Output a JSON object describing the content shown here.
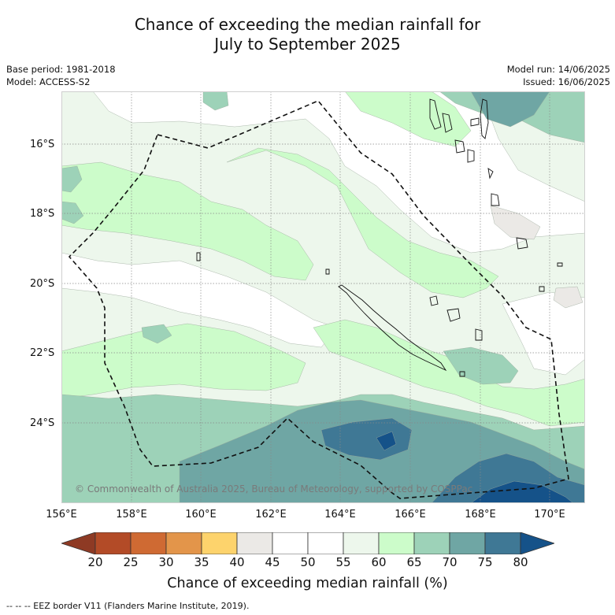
{
  "title": {
    "line1": "Chance of exceeding the median rainfall for",
    "line2": "July to September 2025"
  },
  "meta": {
    "base_period": "Base period: 1981-2018",
    "model": "Model: ACCESS-S2",
    "model_run": "Model run: 14/06/2025",
    "issued": "Issued: 16/06/2025"
  },
  "axes": {
    "lat_labels": [
      "16°S",
      "18°S",
      "20°S",
      "22°S",
      "24°S"
    ],
    "lon_labels": [
      "156°E",
      "158°E",
      "160°E",
      "162°E",
      "164°E",
      "166°E",
      "168°E",
      "170°E"
    ]
  },
  "copyright": "© Commonwealth of Australia 2025, Bureau of Meteorology, supported by COSPPac",
  "colorbar": {
    "labels": [
      "20",
      "25",
      "30",
      "35",
      "40",
      "45",
      "50",
      "55",
      "60",
      "65",
      "70",
      "75",
      "80"
    ],
    "colors": [
      "#8e3a24",
      "#b34b27",
      "#cf6a33",
      "#e3954a",
      "#fdd36c",
      "#ebe9e6",
      "#ffffff",
      "#ffffff",
      "#edf7ec",
      "#ccfcca",
      "#9dd2b8",
      "#6fa6a4",
      "#3f7895",
      "#155289"
    ],
    "title": "Chance of exceeding median rainfall (%)"
  },
  "footnote": "--  --  -- EEZ border V11 (Flanders Marine Institute, 2019).",
  "map_colors": {
    "c55": "#ffffff",
    "c60": "#edf7ec",
    "c65": "#ccfcca",
    "c70": "#9dd2b8",
    "c75": "#6fa6a4",
    "c80": "#3f7895",
    "c85": "#155289",
    "c45": "#ebe9e6"
  }
}
